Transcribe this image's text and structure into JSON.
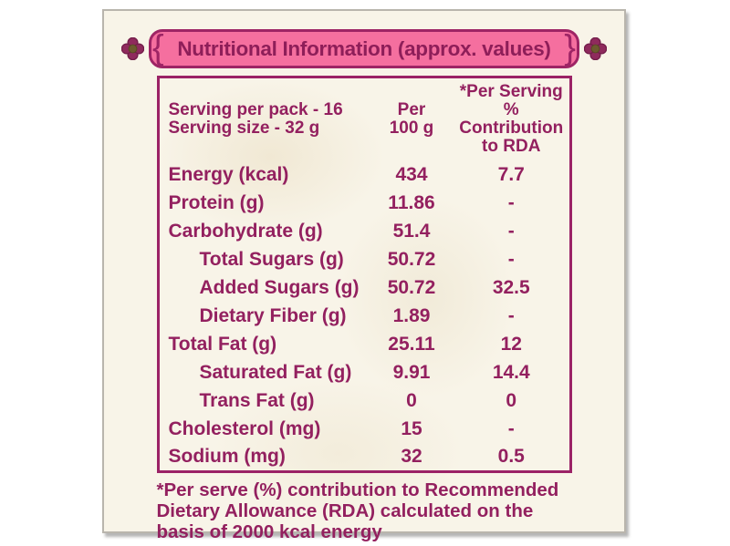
{
  "title": "Nutritional Information (approx. values)",
  "ornaments": {
    "brace_left": "{",
    "brace_right": "}"
  },
  "table": {
    "header": {
      "serving_line1": "Serving per pack - 16",
      "serving_line2": "Serving size - 32 g",
      "per_line1": "Per",
      "per_line2": "100 g",
      "rda_line1": "*Per Serving %",
      "rda_line2": "Contribution",
      "rda_line3": "to RDA"
    },
    "rows": [
      {
        "label": "Energy (kcal)",
        "per100g": "434",
        "rda": "7.7",
        "indent": false
      },
      {
        "label": "Protein (g)",
        "per100g": "11.86",
        "rda": "-",
        "indent": false
      },
      {
        "label": "Carbohydrate (g)",
        "per100g": "51.4",
        "rda": "-",
        "indent": false
      },
      {
        "label": "Total Sugars (g)",
        "per100g": "50.72",
        "rda": "-",
        "indent": true
      },
      {
        "label": "Added Sugars (g)",
        "per100g": "50.72",
        "rda": "32.5",
        "indent": true
      },
      {
        "label": "Dietary Fiber (g)",
        "per100g": "1.89",
        "rda": "-",
        "indent": true
      },
      {
        "label": "Total Fat (g)",
        "per100g": "25.11",
        "rda": "12",
        "indent": false
      },
      {
        "label": "Saturated Fat (g)",
        "per100g": "9.91",
        "rda": "14.4",
        "indent": true
      },
      {
        "label": "Trans Fat (g)",
        "per100g": "0",
        "rda": "0",
        "indent": true
      },
      {
        "label": "Cholesterol (mg)",
        "per100g": "15",
        "rda": "-",
        "indent": false
      },
      {
        "label": "Sodium (mg)",
        "per100g": "32",
        "rda": "0.5",
        "indent": false
      }
    ]
  },
  "footnote": {
    "lines": [
      "*Per serve (%) contribution to Recommended",
      "Dietary Allowance (RDA) calculated on the",
      "basis of 2000 kcal energy"
    ]
  },
  "colors": {
    "banner_fill": "#f56f9f",
    "banner_border": "#9e2465",
    "text_magenta": "#93205f",
    "table_border": "#9b2266",
    "card_background": "#f8f4e8",
    "flower_petal": "#8f2a5d",
    "flower_center": "#6d5a2f"
  }
}
